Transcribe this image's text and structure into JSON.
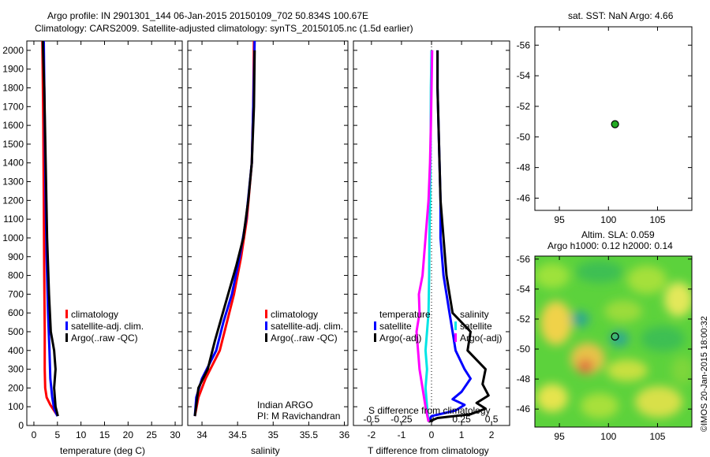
{
  "header": {
    "line1": "Argo profile: IN 2901301_144 06-Jan-2015 20150109_702 50.834S 100.67E",
    "line2": "Climatology: CARS2009. Satellite-adjusted climatology: synTS_20150105.nc (1.5d earlier)"
  },
  "credit": "©IMOS 20-Jan-2015 18:00:32",
  "colors": {
    "climatology": "#ff0000",
    "satellite": "#0000ff",
    "argo": "#000000",
    "satellite_s": "#00e5e5",
    "argo_s": "#ff00ff"
  },
  "chart_data": [
    {
      "id": "temperature",
      "type": "line",
      "xlabel": "temperature (deg C)",
      "ylabel": "",
      "xlim": [
        -1.5,
        31.5
      ],
      "ylim": [
        2050,
        0
      ],
      "xticks": [
        0,
        5,
        10,
        15,
        20,
        25,
        30
      ],
      "yticks": [
        0,
        100,
        200,
        300,
        400,
        500,
        600,
        700,
        800,
        900,
        1000,
        1100,
        1200,
        1300,
        1400,
        1500,
        1600,
        1700,
        1800,
        1900,
        2000
      ],
      "legend": [
        "climatology",
        "satellite-adj. clim.",
        "Argo(..raw -QC)"
      ],
      "series": [
        {
          "name": "climatology",
          "color": "#ff0000",
          "points": [
            [
              4.8,
              60
            ],
            [
              3.5,
              110
            ],
            [
              2.7,
              150
            ],
            [
              2.4,
              200
            ],
            [
              2.3,
              300
            ],
            [
              2.3,
              500
            ],
            [
              2.2,
              800
            ],
            [
              2.1,
              1200
            ],
            [
              2.0,
              1600
            ],
            [
              1.8,
              2050
            ]
          ]
        },
        {
          "name": "satellite-adj. clim.",
          "color": "#0000ff",
          "points": [
            [
              5.0,
              50
            ],
            [
              4.3,
              90
            ],
            [
              3.9,
              150
            ],
            [
              3.5,
              250
            ],
            [
              3.3,
              400
            ],
            [
              3.0,
              600
            ],
            [
              2.7,
              900
            ],
            [
              2.5,
              1200
            ],
            [
              2.3,
              1600
            ],
            [
              2.1,
              2050
            ]
          ]
        },
        {
          "name": "Argo(..raw -QC)",
          "color": "#000000",
          "points": [
            [
              5.1,
              50
            ],
            [
              4.6,
              100
            ],
            [
              4.3,
              200
            ],
            [
              4.6,
              300
            ],
            [
              4.3,
              400
            ],
            [
              3.6,
              500
            ],
            [
              3.2,
              700
            ],
            [
              2.8,
              1000
            ],
            [
              2.5,
              1400
            ],
            [
              2.2,
              1800
            ],
            [
              1.9,
              2050
            ]
          ]
        }
      ]
    },
    {
      "id": "salinity",
      "type": "line",
      "xlabel": "salinity",
      "ylabel": "",
      "xlim": [
        33.8,
        36.05
      ],
      "ylim": [
        2050,
        0
      ],
      "xticks": [
        34,
        34.5,
        35,
        35.5,
        36
      ],
      "legend": [
        "climatology",
        "satellite-adj. clim.",
        "Argo(..raw -QC)"
      ],
      "annotation": [
        "Indian ARGO",
        "PI: M Ravichandran"
      ],
      "series": [
        {
          "name": "climatology",
          "color": "#ff0000",
          "points": [
            [
              33.9,
              50
            ],
            [
              33.95,
              150
            ],
            [
              34.05,
              250
            ],
            [
              34.25,
              400
            ],
            [
              34.35,
              550
            ],
            [
              34.45,
              700
            ],
            [
              34.55,
              900
            ],
            [
              34.63,
              1100
            ],
            [
              34.7,
              1400
            ],
            [
              34.72,
              1700
            ],
            [
              34.73,
              2050
            ]
          ]
        },
        {
          "name": "satellite-adj. clim.",
          "color": "#0000ff",
          "points": [
            [
              33.9,
              50
            ],
            [
              33.92,
              150
            ],
            [
              34.0,
              250
            ],
            [
              34.2,
              400
            ],
            [
              34.3,
              550
            ],
            [
              34.42,
              700
            ],
            [
              34.53,
              900
            ],
            [
              34.62,
              1100
            ],
            [
              34.7,
              1400
            ],
            [
              34.72,
              1700
            ],
            [
              34.74,
              2050
            ]
          ]
        },
        {
          "name": "Argo(..raw -QC)",
          "color": "#000000",
          "points": [
            [
              33.9,
              50
            ],
            [
              33.95,
              200
            ],
            [
              34.08,
              300
            ],
            [
              34.18,
              450
            ],
            [
              34.33,
              650
            ],
            [
              34.48,
              850
            ],
            [
              34.58,
              1000
            ],
            [
              34.65,
              1200
            ],
            [
              34.7,
              1400
            ],
            [
              34.73,
              1700
            ],
            [
              34.74,
              2000
            ]
          ]
        }
      ]
    },
    {
      "id": "difference",
      "type": "line",
      "xlabel": "T difference from climatology",
      "xlabel2": "S difference from climatology",
      "xlim": [
        -2.6,
        2.6
      ],
      "ylim": [
        2050,
        0
      ],
      "xticks": [
        -2,
        -1,
        0,
        1,
        2
      ],
      "xticks_s": [
        -0.5,
        -0.25,
        0,
        0.25,
        0.5
      ],
      "legend_title_t": "temperature",
      "legend_title_s": "salinity",
      "legend": [
        "satellite",
        "Argo(-adj)",
        "satellite",
        "Argo(-adj)"
      ],
      "series": [
        {
          "name": "satellite",
          "color": "#0000ff",
          "points": [
            [
              -0.1,
              20
            ],
            [
              0.0,
              50
            ],
            [
              0.8,
              80
            ],
            [
              1.1,
              110
            ],
            [
              0.7,
              140
            ],
            [
              1.0,
              180
            ],
            [
              1.3,
              250
            ],
            [
              1.1,
              300
            ],
            [
              0.8,
              400
            ],
            [
              0.7,
              500
            ],
            [
              0.6,
              600
            ],
            [
              0.5,
              700
            ],
            [
              0.4,
              800
            ],
            [
              0.3,
              1000
            ],
            [
              0.3,
              1200
            ],
            [
              0.25,
              1500
            ],
            [
              0.2,
              1800
            ],
            [
              0.2,
              2000
            ]
          ]
        },
        {
          "name": "Argo(-adj)",
          "color": "#000000",
          "points": [
            [
              -0.1,
              20
            ],
            [
              0.2,
              40
            ],
            [
              1.3,
              60
            ],
            [
              1.8,
              90
            ],
            [
              1.5,
              120
            ],
            [
              1.9,
              160
            ],
            [
              1.7,
              220
            ],
            [
              1.8,
              300
            ],
            [
              1.2,
              400
            ],
            [
              1.3,
              500
            ],
            [
              0.7,
              600
            ],
            [
              0.6,
              700
            ],
            [
              0.5,
              800
            ],
            [
              0.4,
              1000
            ],
            [
              0.3,
              1200
            ],
            [
              0.25,
              1500
            ],
            [
              0.2,
              1800
            ],
            [
              0.2,
              2000
            ]
          ]
        },
        {
          "name": "satellite",
          "color": "#00e5e5",
          "points": [
            [
              -0.1,
              20
            ],
            [
              -0.15,
              100
            ],
            [
              -0.2,
              200
            ],
            [
              -0.15,
              300
            ],
            [
              -0.2,
              400
            ],
            [
              -0.15,
              500
            ],
            [
              -0.1,
              600
            ],
            [
              -0.08,
              800
            ],
            [
              -0.07,
              1000
            ],
            [
              -0.05,
              1200
            ],
            [
              -0.03,
              1500
            ],
            [
              -0.02,
              1800
            ],
            [
              0.0,
              2000
            ]
          ]
        },
        {
          "name": "Argo(-adj)",
          "color": "#ff00ff",
          "points": [
            [
              -0.1,
              20
            ],
            [
              -0.2,
              100
            ],
            [
              -0.3,
              200
            ],
            [
              -0.4,
              300
            ],
            [
              -0.45,
              400
            ],
            [
              -0.5,
              500
            ],
            [
              -0.4,
              600
            ],
            [
              -0.42,
              700
            ],
            [
              -0.3,
              800
            ],
            [
              -0.25,
              900
            ],
            [
              -0.2,
              1000
            ],
            [
              -0.15,
              1100
            ],
            [
              -0.1,
              1200
            ],
            [
              -0.05,
              1400
            ],
            [
              -0.02,
              1600
            ],
            [
              0.0,
              1800
            ],
            [
              0.02,
              2000
            ]
          ]
        }
      ]
    },
    {
      "id": "sst-map",
      "type": "scatter",
      "title": "sat. SST: NaN Argo: 4.66",
      "xlim": [
        92.5,
        108.5
      ],
      "ylim": [
        -57.2,
        -45.2
      ],
      "xticks": [
        95,
        100,
        105
      ],
      "yticks": [
        -46,
        -48,
        -50,
        -52,
        -54,
        -56
      ],
      "points": [
        [
          100.67,
          -50.834
        ]
      ]
    },
    {
      "id": "sla-map",
      "type": "heatmap",
      "title": "Altim. SLA: 0.059",
      "subtitle": "Argo h1000: 0.12 h2000: 0.14",
      "xlim": [
        92.5,
        108.5
      ],
      "ylim": [
        -56.2,
        -44.8
      ],
      "xticks": [
        95,
        100,
        105
      ],
      "yticks": [
        -46,
        -48,
        -50,
        -52,
        -54,
        -56
      ],
      "points": [
        [
          100.67,
          -50.834
        ]
      ]
    }
  ]
}
